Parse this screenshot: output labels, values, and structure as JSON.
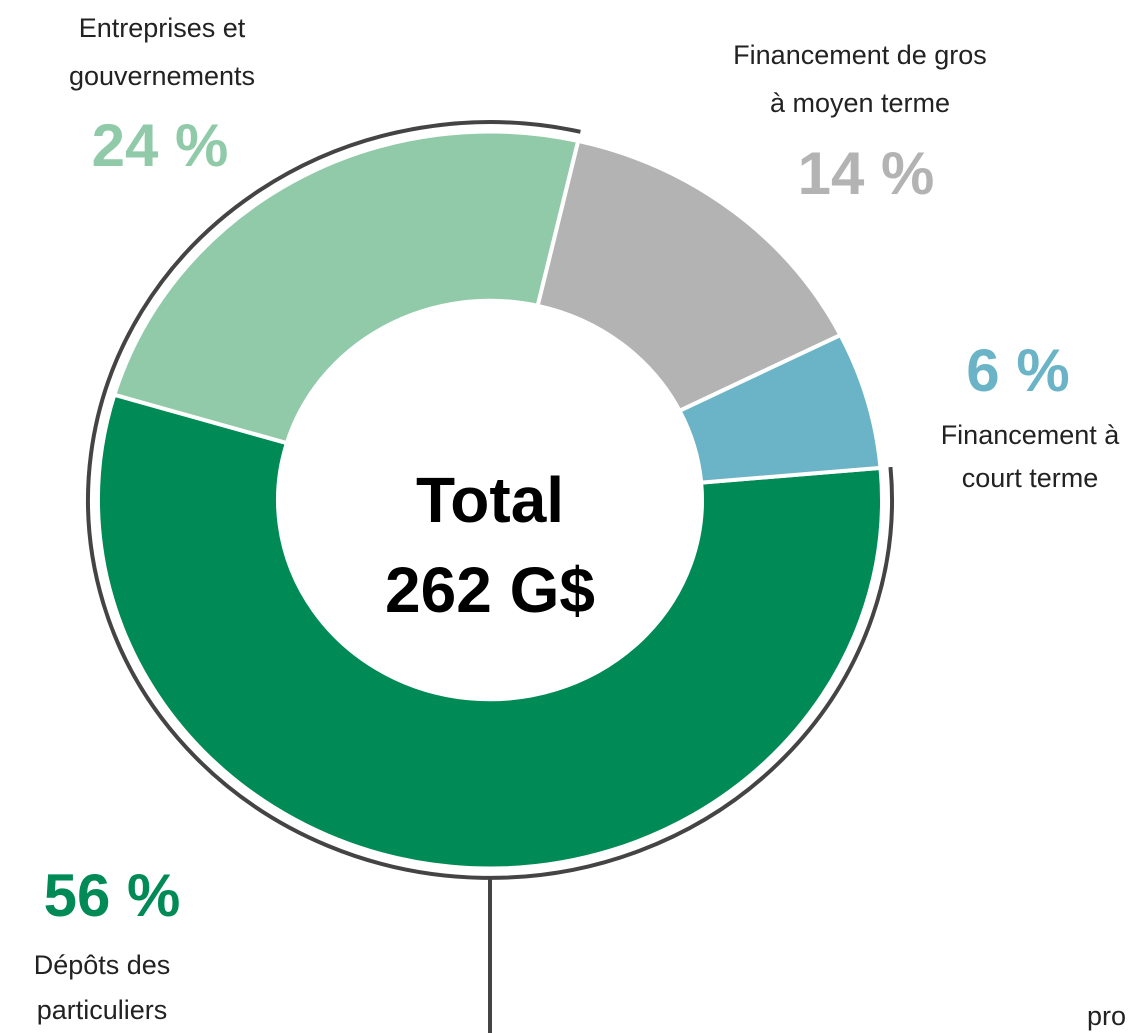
{
  "chart_data": {
    "type": "donut",
    "categories": [
      [
        "Dépôts des",
        "particuliers"
      ],
      [
        "Entreprises et",
        "gouvernements"
      ],
      [
        "Financement de gros",
        "à moyen terme"
      ],
      [
        "Financement à",
        "court terme"
      ]
    ],
    "values": [
      56,
      24,
      14,
      6
    ],
    "value_labels": [
      "56 %",
      "24 %",
      "14 %",
      "6 %"
    ],
    "colors": [
      "#008a55",
      "#91caa9",
      "#b3b3b3",
      "#6bb3c6"
    ],
    "center_label": [
      "Total",
      "262 G$"
    ],
    "annotations": [
      "pro"
    ]
  }
}
